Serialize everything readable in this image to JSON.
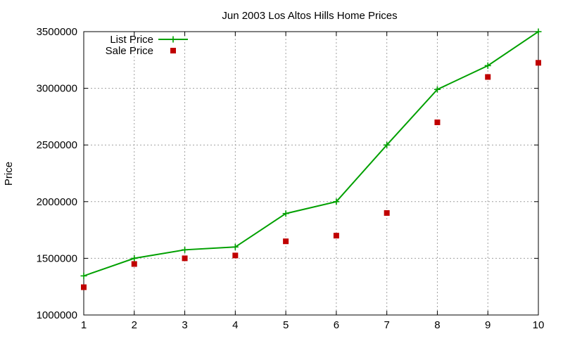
{
  "chart_data": {
    "type": "line",
    "title": "Jun 2003 Los Altos Hills Home Prices",
    "xlabel": "",
    "ylabel": "Price",
    "x": [
      1,
      2,
      3,
      4,
      5,
      6,
      7,
      8,
      9,
      10
    ],
    "xlim": [
      1,
      10
    ],
    "ylim": [
      1000000,
      3500000
    ],
    "x_ticks": [
      "1",
      "2",
      "3",
      "4",
      "5",
      "6",
      "7",
      "8",
      "9",
      "10"
    ],
    "y_ticks": [
      "1000000",
      "1500000",
      "2000000",
      "2500000",
      "3000000",
      "3500000"
    ],
    "y_tick_values": [
      1000000,
      1500000,
      2000000,
      2500000,
      3000000,
      3500000
    ],
    "grid": true,
    "legend_position": "top-left",
    "series": [
      {
        "name": "List Price",
        "style": "linespoints",
        "marker": "plus",
        "color": "#00a000",
        "values": [
          1345000,
          1500000,
          1575000,
          1600000,
          1895000,
          2000000,
          2500000,
          2990000,
          3200000,
          3500000
        ]
      },
      {
        "name": "Sale Price",
        "style": "points",
        "marker": "square",
        "color": "#c00000",
        "values": [
          1245000,
          1450000,
          1500000,
          1525000,
          1650000,
          1700000,
          1900000,
          2700000,
          3100000,
          3225000
        ]
      }
    ]
  }
}
